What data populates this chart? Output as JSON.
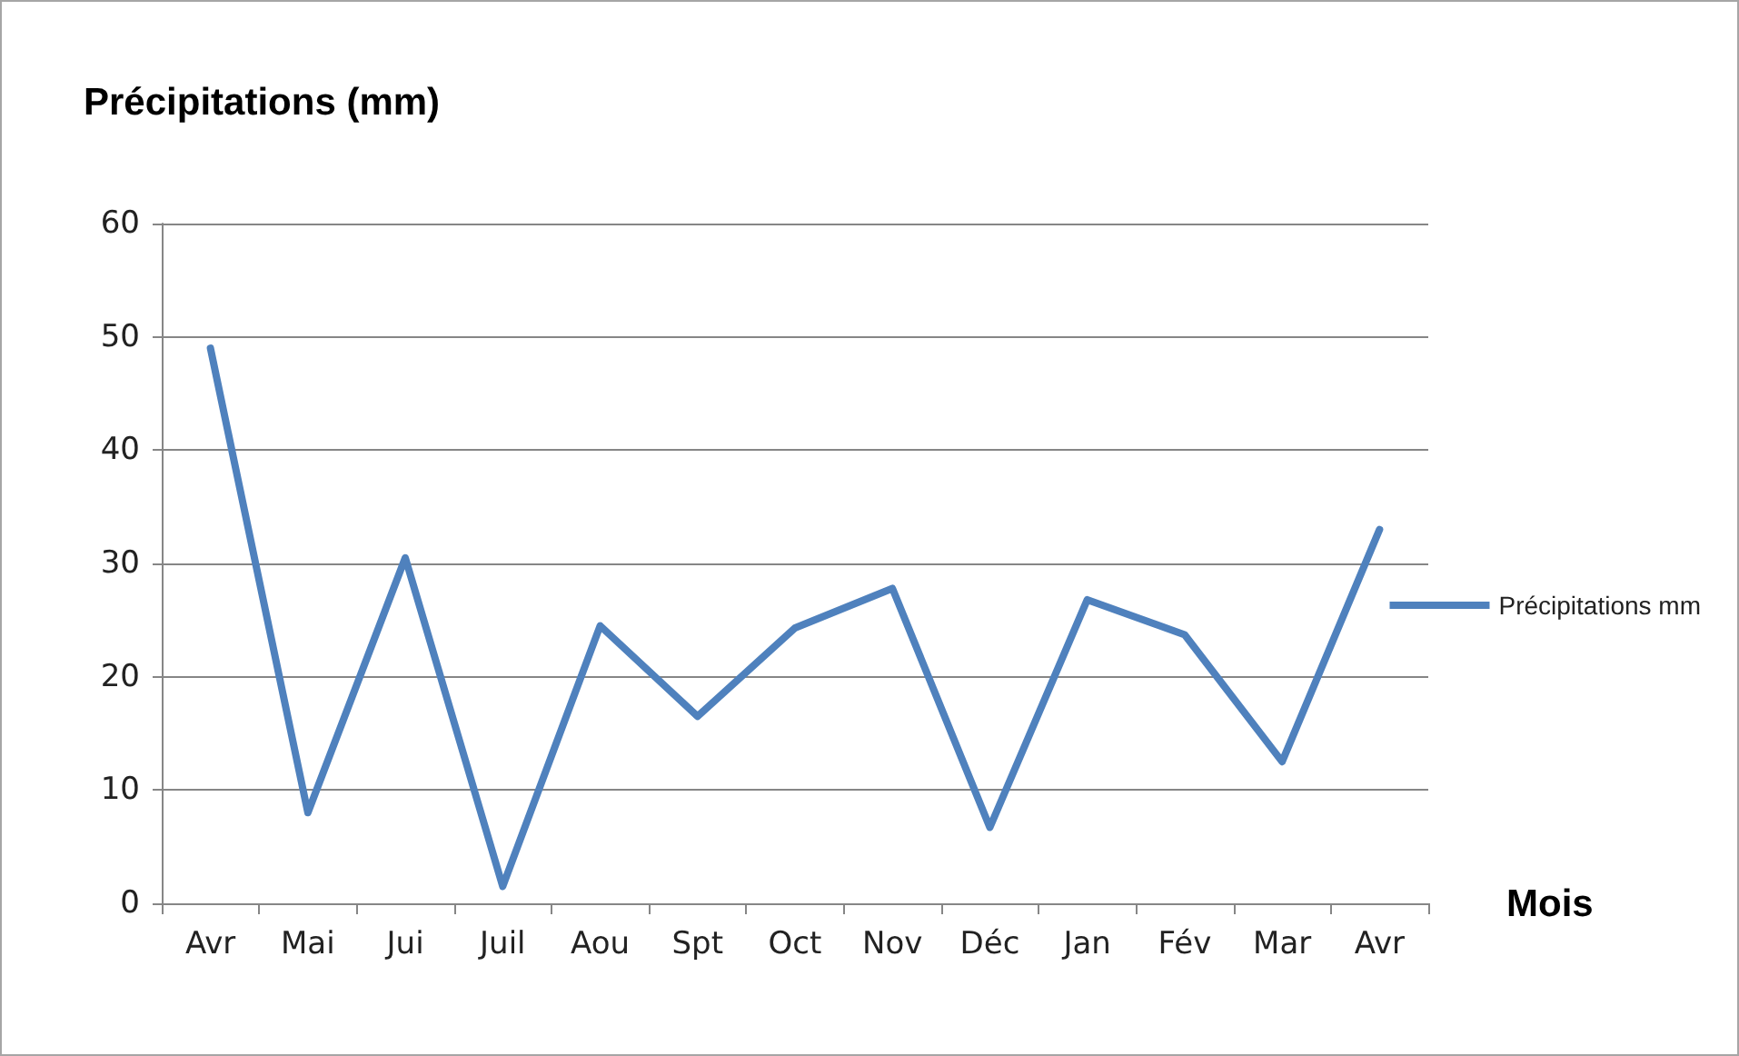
{
  "chart_data": {
    "type": "line",
    "ylabel": "Précipitations (mm)",
    "xlabel": "Mois",
    "categories": [
      "Avr",
      "Mai",
      "Jui",
      "Juil",
      "Aou",
      "Spt",
      "Oct",
      "Nov",
      "Déc",
      "Jan",
      "Fév",
      "Mar",
      "Avr"
    ],
    "series": [
      {
        "name": "Précipitations mm",
        "color": "#4f81bd",
        "values": [
          49,
          8,
          30.5,
          1.5,
          24.5,
          16.5,
          24.3,
          27.8,
          6.7,
          26.8,
          23.7,
          12.5,
          33
        ]
      }
    ],
    "ylim": [
      0,
      60
    ],
    "yticks": [
      0,
      10,
      20,
      30,
      40,
      50,
      60
    ],
    "grid": "y",
    "legend": "right",
    "marker": "none",
    "line_style": "solid"
  }
}
